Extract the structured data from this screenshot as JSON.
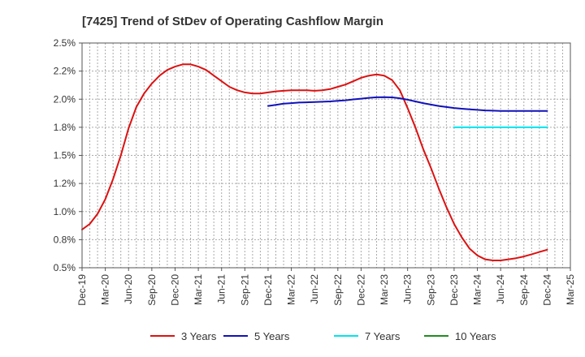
{
  "chart_data": {
    "type": "line",
    "title": "[7425]  Trend of StDev of Operating Cashflow Margin",
    "xlabel": "",
    "ylabel": "",
    "grid": true,
    "legend_position": "bottom",
    "y_ticks": [
      "0.5%",
      "0.8%",
      "1.0%",
      "1.2%",
      "1.5%",
      "1.8%",
      "2.0%",
      "2.2%",
      "2.5%"
    ],
    "ylim": [
      0.5,
      2.5
    ],
    "x_ticks": [
      "Dec-19",
      "Mar-20",
      "Jun-20",
      "Sep-20",
      "Dec-20",
      "Mar-21",
      "Jun-21",
      "Sep-21",
      "Dec-21",
      "Mar-22",
      "Jun-22",
      "Sep-22",
      "Dec-22",
      "Mar-23",
      "Jun-23",
      "Sep-23",
      "Dec-23",
      "Mar-24",
      "Jun-24",
      "Sep-24",
      "Dec-24",
      "Mar-25"
    ],
    "series": [
      {
        "name": "3 Years",
        "color": "#dd1111",
        "x": [
          "Dec-19",
          "Jan-20",
          "Feb-20",
          "Mar-20",
          "Apr-20",
          "May-20",
          "Jun-20",
          "Jul-20",
          "Aug-20",
          "Sep-20",
          "Oct-20",
          "Nov-20",
          "Dec-20",
          "Jan-21",
          "Feb-21",
          "Mar-21",
          "Apr-21",
          "May-21",
          "Jun-21",
          "Jul-21",
          "Aug-21",
          "Sep-21",
          "Oct-21",
          "Nov-21",
          "Dec-21",
          "Jan-22",
          "Feb-22",
          "Mar-22",
          "Apr-22",
          "May-22",
          "Jun-22",
          "Jul-22",
          "Aug-22",
          "Sep-22",
          "Oct-22",
          "Nov-22",
          "Dec-22",
          "Jan-23",
          "Feb-23",
          "Mar-23",
          "Apr-23",
          "May-23",
          "Jun-23",
          "Jul-23",
          "Aug-23",
          "Sep-23",
          "Oct-23",
          "Nov-23",
          "Dec-23",
          "Jan-24",
          "Feb-24",
          "Mar-24",
          "Apr-24",
          "May-24",
          "Jun-24",
          "Jul-24",
          "Aug-24",
          "Sep-24",
          "Oct-24",
          "Nov-24",
          "Dec-24"
        ],
        "values": [
          0.84,
          0.89,
          0.98,
          1.11,
          1.29,
          1.5,
          1.74,
          1.93,
          2.05,
          2.14,
          2.21,
          2.26,
          2.29,
          2.31,
          2.31,
          2.29,
          2.26,
          2.21,
          2.16,
          2.11,
          2.08,
          2.06,
          2.05,
          2.05,
          2.06,
          2.07,
          2.075,
          2.08,
          2.08,
          2.08,
          2.075,
          2.08,
          2.09,
          2.11,
          2.13,
          2.16,
          2.19,
          2.21,
          2.22,
          2.21,
          2.17,
          2.08,
          1.92,
          1.75,
          1.56,
          1.39,
          1.21,
          1.04,
          0.89,
          0.77,
          0.67,
          0.61,
          0.575,
          0.565,
          0.565,
          0.575,
          0.585,
          0.6,
          0.62,
          0.64,
          0.66
        ]
      },
      {
        "name": "5 Years",
        "color": "#1111bb",
        "x": [
          "Dec-21",
          "Jan-22",
          "Feb-22",
          "Mar-22",
          "Apr-22",
          "May-22",
          "Jun-22",
          "Jul-22",
          "Aug-22",
          "Sep-22",
          "Oct-22",
          "Nov-22",
          "Dec-22",
          "Jan-23",
          "Feb-23",
          "Mar-23",
          "Apr-23",
          "May-23",
          "Jun-23",
          "Jul-23",
          "Aug-23",
          "Sep-23",
          "Oct-23",
          "Nov-23",
          "Dec-23",
          "Jan-24",
          "Feb-24",
          "Mar-24",
          "Apr-24",
          "May-24",
          "Jun-24",
          "Jul-24",
          "Aug-24",
          "Sep-24",
          "Oct-24",
          "Nov-24",
          "Dec-24"
        ],
        "values": [
          1.94,
          1.95,
          1.96,
          1.965,
          1.97,
          1.972,
          1.975,
          1.977,
          1.98,
          1.985,
          1.99,
          1.998,
          2.005,
          2.012,
          2.017,
          2.018,
          2.016,
          2.008,
          1.995,
          1.98,
          1.965,
          1.952,
          1.94,
          1.93,
          1.922,
          1.915,
          1.91,
          1.905,
          1.9,
          1.898,
          1.896,
          1.895,
          1.895,
          1.895,
          1.895,
          1.895,
          1.895
        ]
      },
      {
        "name": "7 Years",
        "color": "#00e5ee",
        "x": [
          "Dec-23",
          "Jan-24",
          "Feb-24",
          "Mar-24",
          "Apr-24",
          "May-24",
          "Jun-24",
          "Jul-24",
          "Aug-24",
          "Sep-24",
          "Oct-24",
          "Nov-24",
          "Dec-24"
        ],
        "values": [
          1.75,
          1.75,
          1.75,
          1.75,
          1.75,
          1.75,
          1.75,
          1.75,
          1.75,
          1.75,
          1.75,
          1.75,
          1.75
        ]
      },
      {
        "name": "10 Years",
        "color": "#228B22",
        "x": [],
        "values": []
      }
    ]
  }
}
